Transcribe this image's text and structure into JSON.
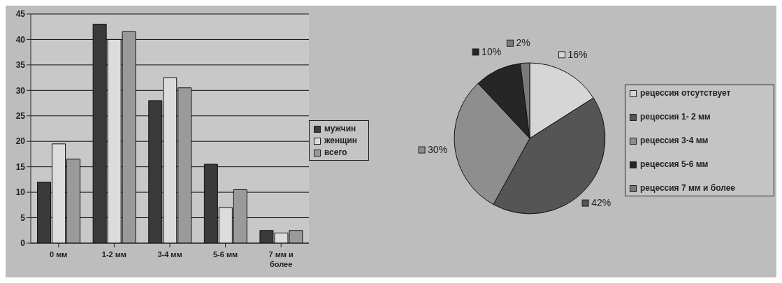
{
  "chart_data": [
    {
      "type": "bar",
      "categories": [
        "0 мм",
        "1-2 мм",
        "3-4 мм",
        "5-6 мм",
        "7 мм и более"
      ],
      "series": [
        {
          "name": "мужчин",
          "color": "#3a3a3a",
          "values": [
            12,
            43,
            28,
            15.5,
            2.5
          ]
        },
        {
          "name": "женщин",
          "color": "#dcdcdc",
          "values": [
            19.5,
            40,
            32.5,
            7,
            2
          ]
        },
        {
          "name": "всего",
          "color": "#9a9a9a",
          "values": [
            16.5,
            41.5,
            30.5,
            10.5,
            2.5
          ]
        }
      ],
      "ylim": [
        0,
        45
      ],
      "yticks": [
        0,
        5,
        10,
        15,
        20,
        25,
        30,
        35,
        40,
        45
      ],
      "grid": "y",
      "legend": "right"
    },
    {
      "type": "pie",
      "categories": [
        "рецессия отсутствует",
        "рецессия 1- 2 мм",
        "рецессия 3-4 мм",
        "рецессия 5-6 мм",
        "рецессия 7 мм и более"
      ],
      "values": [
        16,
        42,
        30,
        10,
        2
      ],
      "colors": [
        "#d6d6d6",
        "#555555",
        "#8e8e8e",
        "#262626",
        "#7a7a7a"
      ],
      "value_labels": [
        "16%",
        "42%",
        "30%",
        "10%",
        "2%"
      ],
      "legend": "right"
    }
  ]
}
